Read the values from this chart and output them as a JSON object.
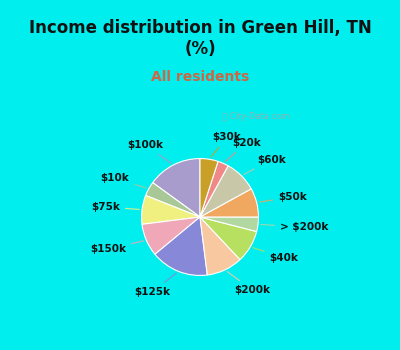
{
  "title": "Income distribution in Green Hill, TN\n(%)",
  "subtitle": "All residents",
  "title_color": "#111111",
  "subtitle_color": "#cc6644",
  "background_color": "#00eeee",
  "chart_bg_top": "#d8f0e8",
  "chart_bg_bottom": "#c8e8d8",
  "labels": [
    "$100k",
    "$10k",
    "$75k",
    "$150k",
    "$125k",
    "$200k",
    "$40k",
    "> $200k",
    "$50k",
    "$60k",
    "$20k",
    "$30k"
  ],
  "values": [
    15,
    4,
    8,
    9,
    16,
    10,
    9,
    4,
    8,
    9,
    3,
    5
  ],
  "colors": [
    "#a89ccc",
    "#a8c898",
    "#f0f080",
    "#f0a8b8",
    "#8888d8",
    "#f8c8a0",
    "#b8e060",
    "#b0d8a0",
    "#f0a860",
    "#c8c8a8",
    "#f08888",
    "#c8a028"
  ],
  "label_fontsize": 7.5,
  "label_fontweight": "bold",
  "title_fontsize": 12,
  "subtitle_fontsize": 10,
  "watermark": "City-Data.com",
  "startangle": 90
}
